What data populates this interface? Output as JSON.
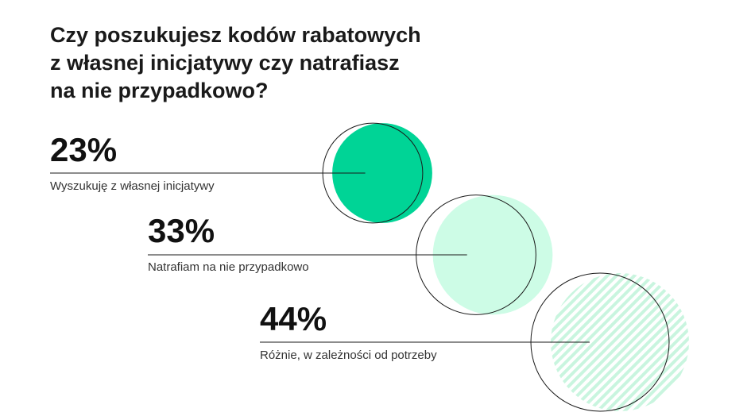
{
  "chart_data": {
    "type": "bubble",
    "title": "Czy poszukujesz kodów rabatowych\nz własnej inicjatywy czy natrafiasz\nna nie przypadkowo?",
    "categories": [
      "Wyszukuję z własnej inicjatywy",
      "Natrafiam na nie przypadkowo",
      "Różnie, w zależności od potrzeby"
    ],
    "values": [
      23,
      33,
      44
    ],
    "value_labels": [
      "23%",
      "33%",
      "44%"
    ],
    "unit": "%",
    "fills": [
      "solid",
      "solid",
      "hatched"
    ],
    "colors": [
      "#00d496",
      "#cdfce6",
      "#c9f5df"
    ],
    "outline_color": "#1a1a1a"
  }
}
